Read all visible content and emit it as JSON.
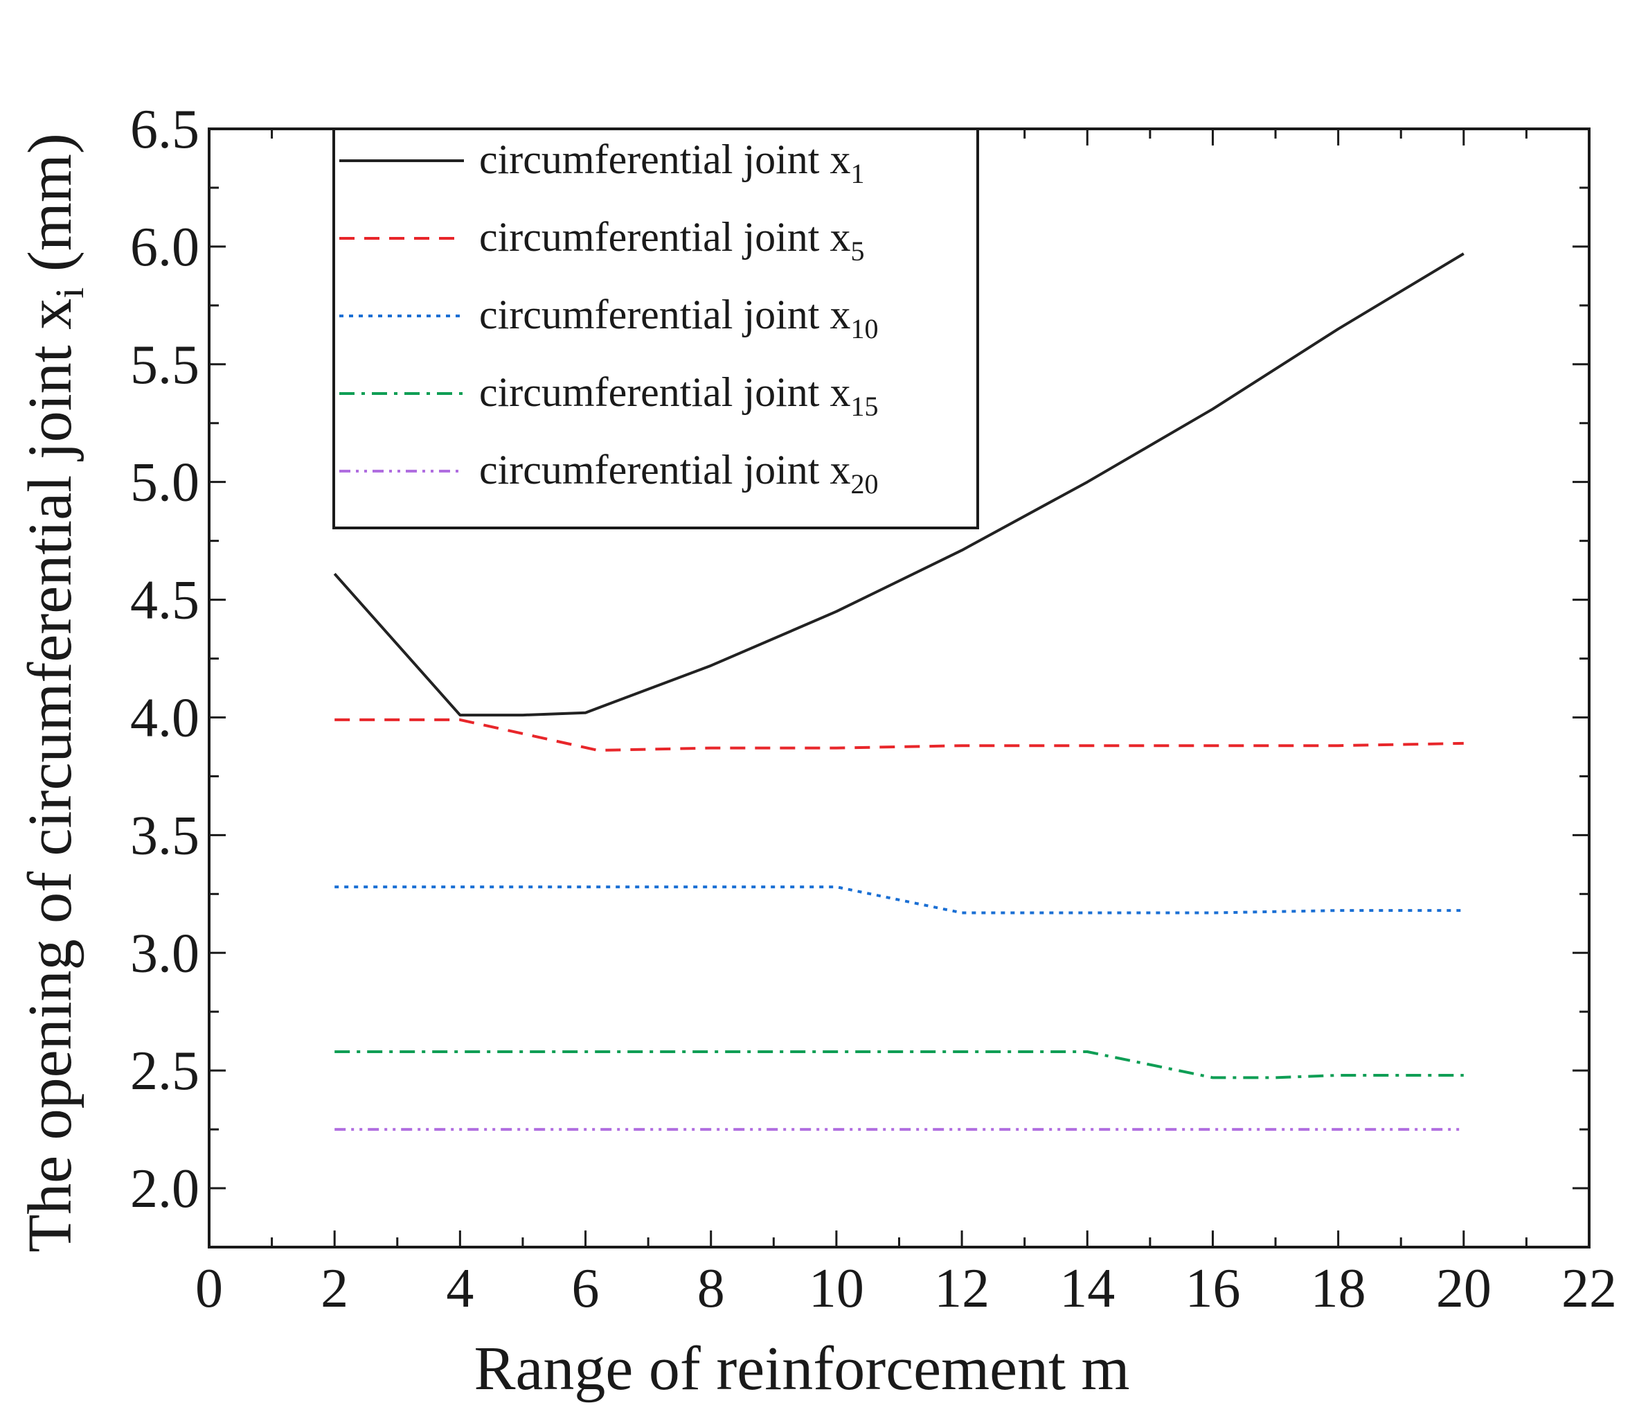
{
  "chart_data": {
    "type": "line",
    "xlabel": "Range of reinforcement m",
    "ylabel_main": "The opening of circumferential joint x",
    "ylabel_sub": "i",
    "ylabel_unit": " (mm)",
    "xlim": [
      0,
      22
    ],
    "ylim": [
      1.75,
      6.5
    ],
    "xticks": [
      0,
      2,
      4,
      6,
      8,
      10,
      12,
      14,
      16,
      18,
      20,
      22
    ],
    "xtick_labels": [
      "0",
      "2",
      "4",
      "6",
      "8",
      "10",
      "12",
      "14",
      "16",
      "18",
      "20",
      "22"
    ],
    "yticks": [
      2.0,
      2.5,
      3.0,
      3.5,
      4.0,
      4.5,
      5.0,
      5.5,
      6.0,
      6.5
    ],
    "ytick_labels": [
      "2.0",
      "2.5",
      "3.0",
      "3.5",
      "4.0",
      "4.5",
      "5.0",
      "5.5",
      "6.0",
      "6.5"
    ],
    "grid": false,
    "legend_position": "top-left",
    "series": [
      {
        "name": "circumferential joint x1",
        "label_main": "circumferential joint x",
        "label_sub": "1",
        "color": "#222222",
        "dash": "solid",
        "x": [
          2,
          4,
          5,
          6,
          8,
          10,
          12,
          14,
          16,
          18,
          20
        ],
        "values": [
          4.61,
          4.01,
          4.01,
          4.02,
          4.22,
          4.45,
          4.71,
          5.0,
          5.31,
          5.65,
          5.97
        ]
      },
      {
        "name": "circumferential joint x5",
        "label_main": "circumferential joint x",
        "label_sub": "5",
        "color": "#e8262a",
        "dash": "dashed",
        "x": [
          2,
          4,
          6.2,
          8,
          10,
          12,
          14,
          16,
          18,
          20
        ],
        "values": [
          3.99,
          3.99,
          3.86,
          3.87,
          3.87,
          3.88,
          3.88,
          3.88,
          3.88,
          3.89
        ]
      },
      {
        "name": "circumferential joint x10",
        "label_main": "circumferential joint x",
        "label_sub": "10",
        "color": "#1a6fd4",
        "dash": "dotted",
        "x": [
          2,
          4,
          6,
          8,
          10,
          12,
          14,
          16,
          18,
          20
        ],
        "values": [
          3.28,
          3.28,
          3.28,
          3.28,
          3.28,
          3.17,
          3.17,
          3.17,
          3.18,
          3.18
        ]
      },
      {
        "name": "circumferential joint x15",
        "label_main": "circumferential joint x",
        "label_sub": "15",
        "color": "#0f9e55",
        "dash": "dash-dot",
        "x": [
          2,
          4,
          6,
          8,
          10,
          12,
          14,
          16,
          17,
          18,
          20
        ],
        "values": [
          2.58,
          2.58,
          2.58,
          2.58,
          2.58,
          2.58,
          2.58,
          2.47,
          2.47,
          2.48,
          2.48
        ]
      },
      {
        "name": "circumferential joint x20",
        "label_main": "circumferential joint x",
        "label_sub": "20",
        "color": "#b06ee0",
        "dash": "dash-dot-dot",
        "x": [
          2,
          4,
          6,
          8,
          10,
          12,
          14,
          16,
          18,
          20
        ],
        "values": [
          2.25,
          2.25,
          2.25,
          2.25,
          2.25,
          2.25,
          2.25,
          2.25,
          2.25,
          2.25
        ]
      }
    ]
  }
}
